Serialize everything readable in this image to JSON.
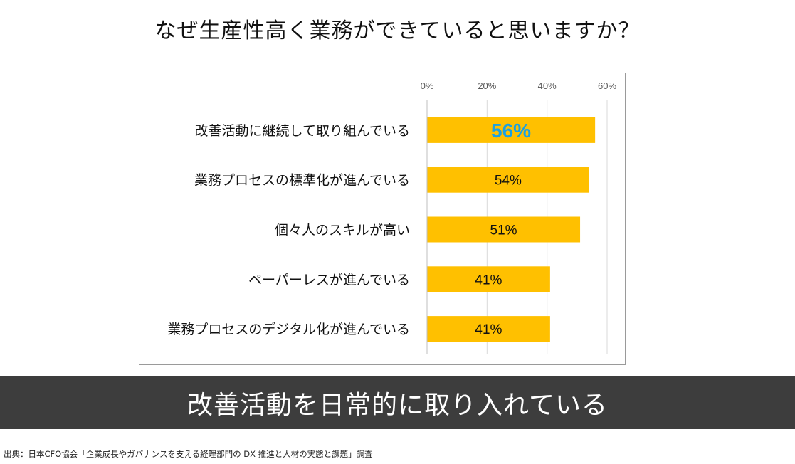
{
  "title": "なぜ生産性高く業務ができていると思いますか？",
  "banner": "改善活動を日常的に取り入れている",
  "source": "出典：日本CFO協会「企業成長やガバナンスを支える経理部門の DX 推進と人材の実態と課題」調査",
  "colors": {
    "bar": "#ffc000",
    "highlight_label": "#1ba1e2",
    "banner_bg": "#3d3d3d",
    "grid": "#d9d9d9"
  },
  "chart_data": {
    "type": "bar",
    "orientation": "horizontal",
    "categories": [
      "改善活動に継続して取り組んでいる",
      "業務プロセスの標準化が進んでいる",
      "個々人のスキルが高い",
      "ペーパーレスが進んでいる",
      "業務プロセスのデジタル化が進んでいる"
    ],
    "values": [
      56,
      54,
      51,
      41,
      41
    ],
    "data_labels": [
      "56%",
      "54%",
      "51%",
      "41%",
      "41%"
    ],
    "highlight_index": 0,
    "xlim": [
      0,
      60
    ],
    "xticks": [
      0,
      20,
      40,
      60
    ],
    "xtick_labels": [
      "0%",
      "20%",
      "40%",
      "60%"
    ],
    "xaxis_position": "top",
    "grid": true,
    "legend": "none"
  }
}
